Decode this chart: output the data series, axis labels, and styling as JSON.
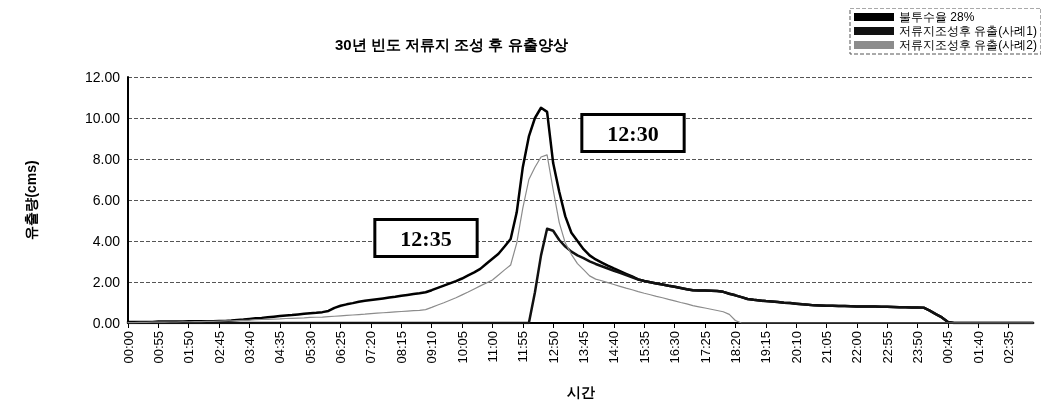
{
  "chart_data": {
    "type": "line",
    "title": "30년 빈도 저류지 조성 후 유출양상",
    "xlabel": "시간",
    "ylabel": "유출량(cms)",
    "categories": [
      "00:00",
      null,
      null,
      null,
      null,
      "00:55",
      null,
      null,
      null,
      null,
      "01:50",
      null,
      null,
      null,
      null,
      "02:45",
      null,
      null,
      null,
      null,
      "03:40",
      null,
      null,
      null,
      null,
      "04:35",
      null,
      null,
      null,
      null,
      "05:30",
      null,
      null,
      null,
      null,
      "06:25",
      null,
      null,
      null,
      null,
      "07:20",
      null,
      null,
      null,
      null,
      "08:15",
      null,
      null,
      null,
      null,
      "09:10",
      null,
      null,
      null,
      null,
      "10:05",
      null,
      null,
      null,
      null,
      "11:00",
      null,
      null,
      null,
      null,
      "11:55",
      null,
      null,
      null,
      null,
      "12:50",
      null,
      null,
      null,
      null,
      "13:45",
      null,
      null,
      null,
      null,
      "14:40",
      null,
      null,
      null,
      null,
      "15:35",
      null,
      null,
      null,
      null,
      "16:30",
      null,
      null,
      null,
      null,
      "17:25",
      null,
      null,
      null,
      null,
      "18:20",
      null,
      null,
      null,
      null,
      "19:15",
      null,
      null,
      null,
      null,
      "20:10",
      null,
      null,
      null,
      null,
      "21:05",
      null,
      null,
      null,
      null,
      "22:00",
      null,
      null,
      null,
      null,
      "22:55",
      null,
      null,
      null,
      null,
      "23:50",
      null,
      null,
      null,
      null,
      "00:45",
      null,
      null,
      null,
      null,
      "01:40",
      null,
      null,
      null,
      null,
      "02:35",
      null,
      null,
      null,
      null
    ],
    "ylim": [
      0,
      12
    ],
    "yticks": [
      {
        "value": 0,
        "label": "0.00"
      },
      {
        "value": 2,
        "label": "2.00"
      },
      {
        "value": 4,
        "label": "4.00"
      },
      {
        "value": 6,
        "label": "6.00"
      },
      {
        "value": 8,
        "label": "8.00"
      },
      {
        "value": 10,
        "label": "10.00"
      },
      {
        "value": 12,
        "label": "12.00"
      }
    ],
    "grid": "y",
    "legend": "top right",
    "marker": "none",
    "line_style": "solid",
    "annotations": [
      "12:35",
      "12:30"
    ],
    "series": [
      {
        "name": "불투수율 28%",
        "color": "#000000",
        "values": [
          0.05,
          0.05,
          0.05,
          0.05,
          0.05,
          0.07,
          0.07,
          0.07,
          0.07,
          0.07,
          0.08,
          0.08,
          0.08,
          0.08,
          0.08,
          0.1,
          0.1,
          0.12,
          0.15,
          0.17,
          0.2,
          0.23,
          0.25,
          0.28,
          0.31,
          0.34,
          0.37,
          0.39,
          0.42,
          0.45,
          0.48,
          0.5,
          0.53,
          0.59,
          0.74,
          0.84,
          0.91,
          0.97,
          1.04,
          1.08,
          1.12,
          1.16,
          1.2,
          1.24,
          1.28,
          1.33,
          1.37,
          1.41,
          1.45,
          1.5,
          1.6,
          1.71,
          1.82,
          1.93,
          2.04,
          2.17,
          2.32,
          2.47,
          2.64,
          2.89,
          3.13,
          3.38,
          3.73,
          4.1,
          5.4,
          7.6,
          9.1,
          10,
          10.5,
          10.3,
          7.8,
          6.4,
          5.2,
          4.4,
          4.0,
          3.6,
          3.3,
          3.1,
          2.95,
          2.8,
          2.66,
          2.53,
          2.4,
          2.27,
          2.13,
          2.05,
          1.99,
          1.93,
          1.88,
          1.82,
          1.77,
          1.71,
          1.65,
          1.6,
          1.59,
          1.58,
          1.57,
          1.56,
          1.52,
          1.43,
          1.35,
          1.26,
          1.17,
          1.13,
          1.1,
          1.07,
          1.05,
          1.02,
          0.99,
          0.97,
          0.94,
          0.91,
          0.89,
          0.86,
          0.85,
          0.84,
          0.84,
          0.83,
          0.83,
          0.82,
          0.81,
          0.81,
          0.8,
          0.8,
          0.79,
          0.79,
          0.78,
          0.77,
          0.77,
          0.76,
          0.76,
          0.75,
          0.6,
          0.43,
          0.27,
          0.05,
          0,
          0,
          0,
          0,
          0,
          0,
          0,
          0,
          0,
          0,
          0,
          0,
          0,
          0
        ]
      },
      {
        "name": "저류지조성후 유출(사례1)",
        "color": "#111111",
        "values": [
          0,
          0,
          0,
          0,
          0,
          0,
          0,
          0,
          0,
          0,
          0,
          0,
          0,
          0,
          0,
          0,
          0,
          0,
          0,
          0,
          0,
          0,
          0,
          0,
          0,
          0,
          0,
          0,
          0,
          0,
          0,
          0,
          0,
          0,
          0,
          0,
          0,
          0,
          0,
          0,
          0,
          0,
          0,
          0,
          0,
          0,
          0,
          0,
          0,
          0,
          0,
          0,
          0,
          0,
          0,
          0,
          0,
          0,
          0,
          0,
          0,
          0,
          0,
          0,
          0,
          0,
          0,
          1.5,
          3.3,
          4.6,
          4.5,
          4.05,
          3.73,
          3.48,
          3.3,
          3.16,
          3.01,
          2.88,
          2.77,
          2.66,
          2.55,
          2.45,
          2.34,
          2.23,
          2.12,
          2.05,
          1.99,
          1.93,
          1.88,
          1.82,
          1.77,
          1.71,
          1.65,
          1.6,
          1.59,
          1.58,
          1.57,
          1.56,
          1.52,
          1.43,
          1.35,
          1.26,
          1.17,
          1.13,
          1.1,
          1.07,
          1.05,
          1.02,
          0.99,
          0.97,
          0.94,
          0.91,
          0.89,
          0.86,
          0.85,
          0.84,
          0.84,
          0.83,
          0.83,
          0.82,
          0.81,
          0.81,
          0.8,
          0.8,
          0.79,
          0.79,
          0.78,
          0.77,
          0.77,
          0.76,
          0.76,
          0.75,
          0.6,
          0.43,
          0.27,
          0.05,
          0,
          0,
          0,
          0,
          0,
          0,
          0,
          0,
          0,
          0,
          0,
          0,
          0,
          0
        ]
      },
      {
        "name": "저류지조성후 유출(사례2)",
        "color": "#8c8c8c",
        "values": [
          0.02,
          0.02,
          0.03,
          0.03,
          0.04,
          0.04,
          0.04,
          0.05,
          0.05,
          0.06,
          0.06,
          0.07,
          0.07,
          0.08,
          0.08,
          0.09,
          0.1,
          0.11,
          0.12,
          0.13,
          0.14,
          0.16,
          0.17,
          0.18,
          0.19,
          0.2,
          0.22,
          0.23,
          0.24,
          0.25,
          0.27,
          0.28,
          0.29,
          0.31,
          0.33,
          0.35,
          0.37,
          0.39,
          0.41,
          0.43,
          0.46,
          0.48,
          0.5,
          0.52,
          0.54,
          0.56,
          0.58,
          0.6,
          0.62,
          0.65,
          0.76,
          0.88,
          0.99,
          1.11,
          1.23,
          1.37,
          1.51,
          1.66,
          1.81,
          1.95,
          2.1,
          2.34,
          2.59,
          2.83,
          3.9,
          5.6,
          7.0,
          7.6,
          8.1,
          8.2,
          6.5,
          4.9,
          3.9,
          3.35,
          2.9,
          2.6,
          2.3,
          2.14,
          2.06,
          1.97,
          1.88,
          1.79,
          1.7,
          1.62,
          1.53,
          1.45,
          1.38,
          1.3,
          1.23,
          1.15,
          1.08,
          1.0,
          0.93,
          0.85,
          0.79,
          0.73,
          0.67,
          0.61,
          0.55,
          0.42,
          0.12,
          0,
          0,
          0,
          0,
          0,
          0,
          0,
          0,
          0,
          0,
          0,
          0,
          0,
          0,
          0,
          0,
          0,
          0,
          0,
          0,
          0,
          0,
          0,
          0,
          0,
          0,
          0,
          0,
          0,
          0,
          0,
          0,
          0,
          0,
          0,
          0,
          0,
          0,
          0,
          0,
          0,
          0,
          0,
          0,
          0,
          0,
          0,
          0,
          0
        ]
      }
    ]
  }
}
